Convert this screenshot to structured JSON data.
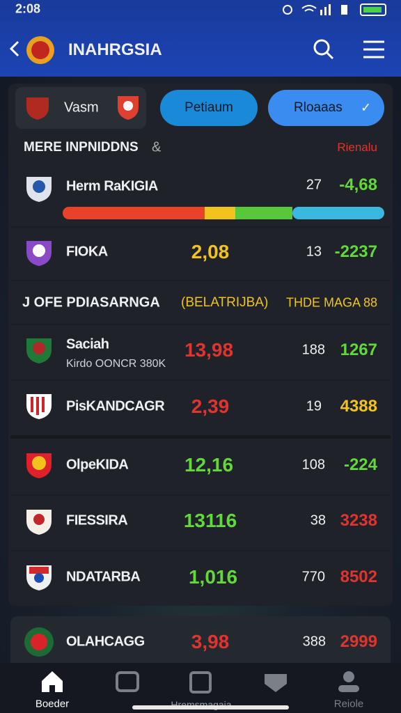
{
  "status_bar": {
    "time": "2:08"
  },
  "header": {
    "title": "INAHRGSIA"
  },
  "tabs": {
    "team": "Vasm",
    "buttons": [
      "Petiaum",
      "Rloaaas"
    ]
  },
  "sections": [
    {
      "title": "MERE INPNIDDNS",
      "right": "Rienalu",
      "rows": [
        {
          "name": "Herm RaKIGIA",
          "count": "27",
          "change": "-4,68"
        },
        {
          "name": "FIOKA",
          "score": "2,08",
          "count": "13",
          "change": "-2237"
        }
      ]
    },
    {
      "title": "J OFE PDIASARNGA",
      "middle": "(BELATRIJBA)",
      "right": "THDE MAGA 88",
      "rows": [
        {
          "name": "Saciah",
          "subtitle": "Kirdo OONCR 380K",
          "score": "13,98",
          "count": "188",
          "change": "1267"
        },
        {
          "name": "PisKANDCAGR",
          "score": "2,39",
          "count": "19",
          "change": "4388"
        },
        {
          "name": "OlpeKIDA",
          "score": "12,16",
          "count": "108",
          "change": "-224"
        },
        {
          "name": "FIESSIRA",
          "score": "13116",
          "count": "38",
          "change": "3238"
        },
        {
          "name": "NDATARBA",
          "score": "1,016",
          "count": "770",
          "change": "8502"
        },
        {
          "name": "OLAHCAGG",
          "score": "3,98",
          "count": "388",
          "change": "2999"
        }
      ]
    }
  ],
  "nav": [
    "Boeder",
    "Hremsmagaia",
    "Reiole"
  ]
}
